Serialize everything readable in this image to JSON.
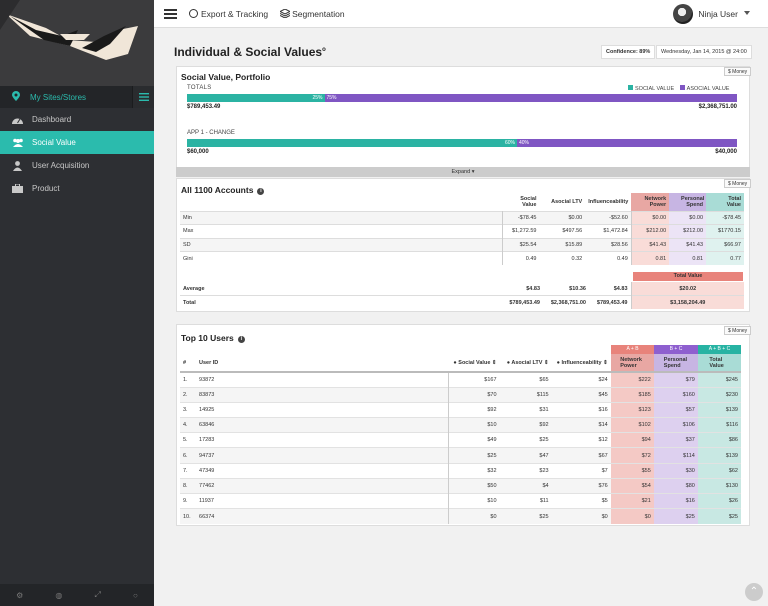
{
  "sidebar": {
    "site_label": "My Sites/Stores",
    "items": [
      {
        "label": "Dashboard",
        "icon": "dashboard-icon",
        "active": false
      },
      {
        "label": "Social Value",
        "icon": "users-icon",
        "active": true
      },
      {
        "label": "User Acquisition",
        "icon": "user-icon",
        "active": false
      },
      {
        "label": "Product",
        "icon": "briefcase-icon",
        "active": false
      }
    ],
    "footer_icons": [
      "settings-icon",
      "globe-icon",
      "expand-icon",
      "power-icon"
    ]
  },
  "topbar": {
    "export": "Export & Tracking",
    "segmentation": "Segmentation",
    "user": "Ninja User"
  },
  "page": {
    "title": "Individual & Social Values",
    "title_mark": "o",
    "confidence": "Confidence: 89%",
    "date": "Wednesday, Jan 14, 2015 @ 24:00"
  },
  "portfolio": {
    "title": "Social Value, Portfolio",
    "money_label": "$ Money",
    "totals_label": "TOTALS",
    "legend_social": "SOCIAL VALUE",
    "legend_asocial": "ASOCIAL VALUE",
    "totals_left_pct": "25%",
    "totals_right_pct": "75%",
    "totals_fraction": 0.25,
    "totals_left_amount": "$789,453.49",
    "totals_right_amount": "$2,368,751.00",
    "app_label": "APP 1 - CHANGE",
    "app_left_pct": "60%",
    "app_right_pct": "40%",
    "app_fraction": 0.6,
    "app_left_amount": "$60,000",
    "app_right_amount": "$40,000",
    "expand_label": "Expand ▾"
  },
  "colors": {
    "teal": "#2bb3a3",
    "purple": "#7f56c3",
    "network": "#e8a7a3",
    "personal": "#c7b5e3",
    "total": "#a9dcd6"
  },
  "accounts": {
    "title": "All 1100 Accounts",
    "money_label": "$ Money",
    "columns": [
      "Social Value",
      "Asocial LTV",
      "Influenceability",
      "Network Power",
      "Personal Spend",
      "Total Value"
    ],
    "rows": [
      {
        "label": "Min",
        "values": [
          "-$78.45",
          "$0.00",
          "-$52.60",
          "$0.00",
          "$0.00",
          "-$78.45"
        ]
      },
      {
        "label": "Max",
        "values": [
          "$1,272.59",
          "$497.56",
          "$1,472.84",
          "$212.00",
          "$212.00",
          "$1770.15"
        ]
      },
      {
        "label": "SD",
        "values": [
          "$25.54",
          "$15.89",
          "$28.56",
          "$41.43",
          "$41.43",
          "$66.97"
        ]
      },
      {
        "label": "Gini",
        "values": [
          "0.49",
          "0.32",
          "0.49",
          "0.81",
          "0.81",
          "0.77"
        ]
      }
    ],
    "total_value_header": "Total Value",
    "average_label": "Average",
    "average_values": [
      "$4.83",
      "$10.36",
      "$4.83"
    ],
    "average_total": "$20.02",
    "total_label": "Total",
    "total_values": [
      "$789,453.49",
      "$2,368,751.00",
      "$789,453.49"
    ],
    "total_total": "$3,158,204.49"
  },
  "top_users": {
    "title": "Top 10 Users",
    "money_label": "$ Money",
    "group_headers": [
      "A + B",
      "B + C",
      "A + B + C"
    ],
    "columns": [
      "#",
      "User ID",
      "Social Value",
      "Asocial LTV",
      "Influenceability",
      "Network Power",
      "Personal Spend",
      "Total Value"
    ],
    "rows": [
      [
        "1.",
        "93872",
        "$167",
        "$65",
        "$24",
        "$222",
        "$79",
        "$245"
      ],
      [
        "2.",
        "83873",
        "$70",
        "$115",
        "$45",
        "$185",
        "$160",
        "$230"
      ],
      [
        "3.",
        "14925",
        "$92",
        "$31",
        "$16",
        "$123",
        "$57",
        "$139"
      ],
      [
        "4.",
        "63846",
        "$10",
        "$92",
        "$14",
        "$102",
        "$106",
        "$116"
      ],
      [
        "5.",
        "17283",
        "$49",
        "$25",
        "$12",
        "$94",
        "$37",
        "$86"
      ],
      [
        "6.",
        "94737",
        "$25",
        "$47",
        "$67",
        "$72",
        "$114",
        "$139"
      ],
      [
        "7.",
        "47349",
        "$32",
        "$23",
        "$7",
        "$55",
        "$30",
        "$62"
      ],
      [
        "8.",
        "77462",
        "$50",
        "$4",
        "$76",
        "$54",
        "$80",
        "$130"
      ],
      [
        "9.",
        "11937",
        "$10",
        "$11",
        "$5",
        "$21",
        "$16",
        "$26"
      ],
      [
        "10.",
        "66374",
        "$0",
        "$25",
        "$0",
        "$0",
        "$25",
        "$25"
      ]
    ]
  }
}
